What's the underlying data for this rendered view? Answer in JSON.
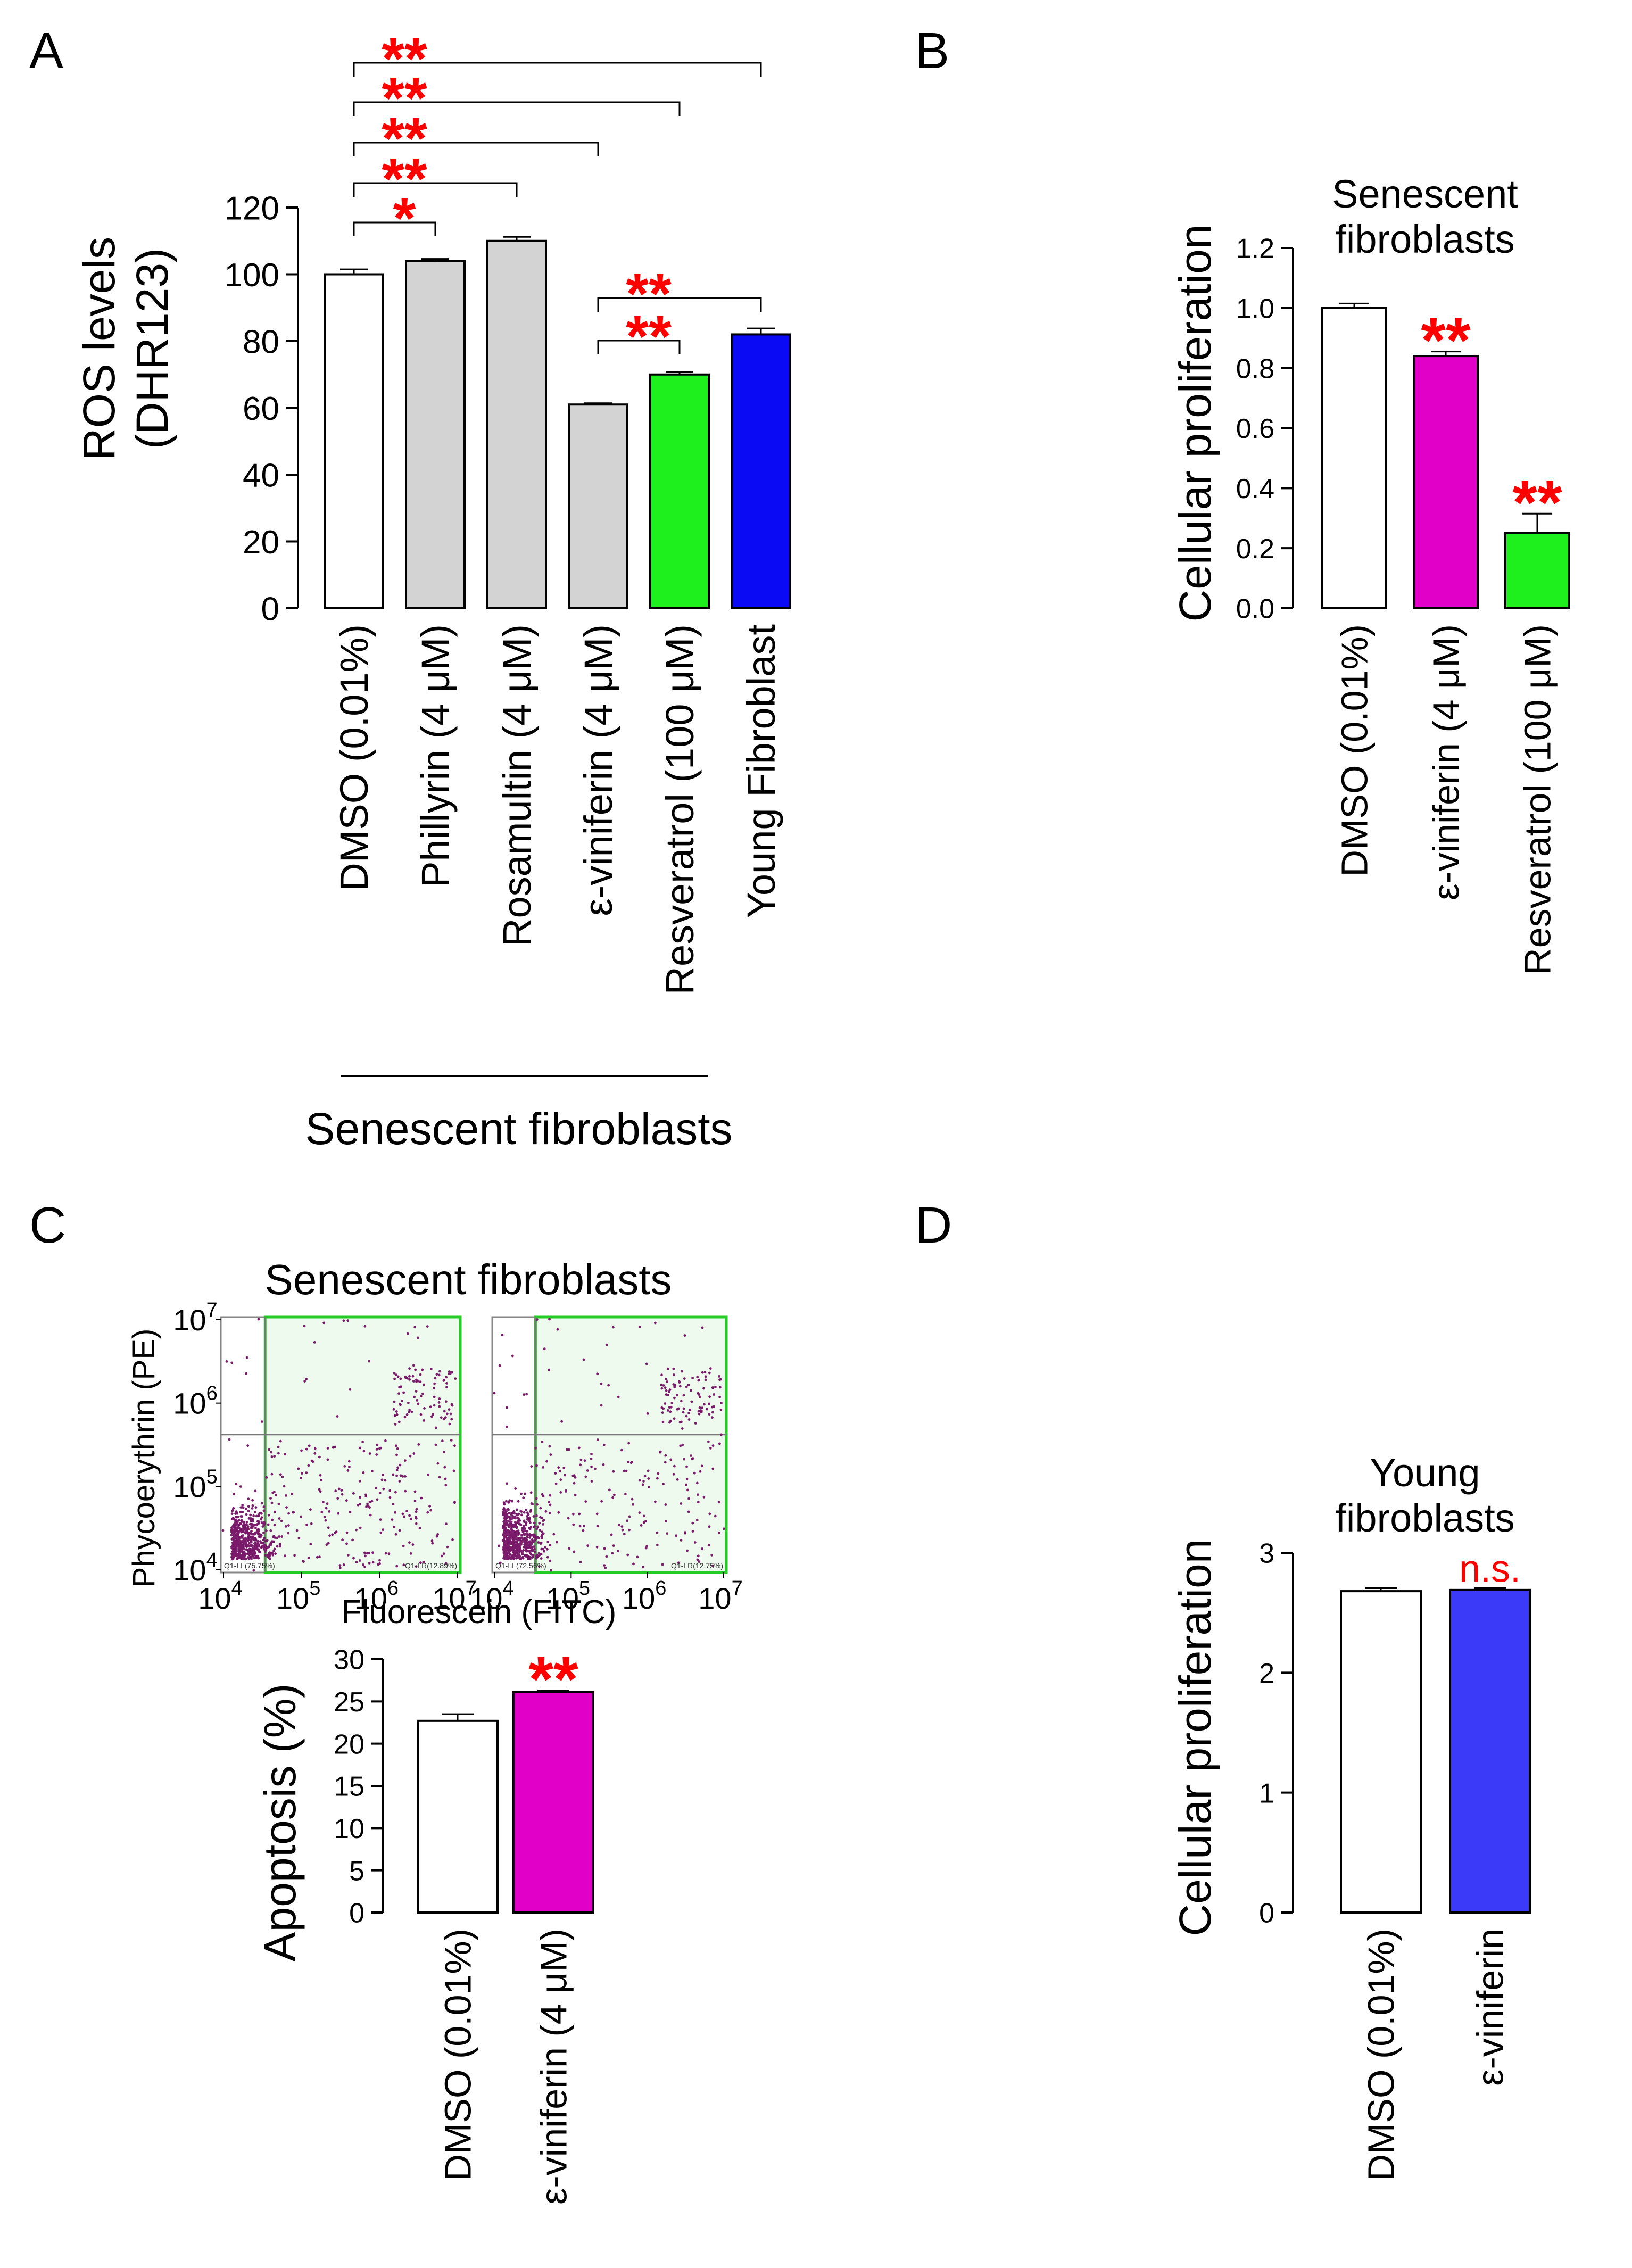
{
  "panel_labels": {
    "a": "A",
    "b": "B",
    "c": "C",
    "d": "D"
  },
  "colors": {
    "white": "#ffffff",
    "gray": "#d3d3d3",
    "green": "#1ef01e",
    "blue": "#0a0af5",
    "magenta": "#e000c8",
    "blue_d": "#3a3af8",
    "star": "#ff0000",
    "flow_dot": "#7a1a6a",
    "gate": "#22cc22"
  },
  "chart_data": [
    {
      "id": "A",
      "type": "bar",
      "ylabel_line1": "ROS levels",
      "ylabel_line2": "(DHR123)",
      "ylim": [
        0,
        120
      ],
      "yticks": [
        "0",
        "20",
        "40",
        "60",
        "80",
        "100",
        "120"
      ],
      "categories": [
        "DMSO (0.01%)",
        "Phillyrin (4 μM)",
        "Rosamultin (4 μM)",
        "ε-viniferin (4 μM)",
        "Resveratrol (100 μM)",
        "Young Fibroblast"
      ],
      "values": [
        100,
        104,
        110,
        61,
        70,
        82
      ],
      "errors": [
        1.5,
        0.6,
        1.2,
        0.4,
        0.8,
        1.8
      ],
      "bar_colors": [
        "white",
        "gray",
        "gray",
        "gray",
        "green",
        "blue"
      ],
      "group_label": "Senescent fibroblasts",
      "comparisons": [
        {
          "from": 0,
          "to": 5,
          "label": "**"
        },
        {
          "from": 0,
          "to": 4,
          "label": "**"
        },
        {
          "from": 0,
          "to": 3,
          "label": "**"
        },
        {
          "from": 0,
          "to": 2,
          "label": "**"
        },
        {
          "from": 0,
          "to": 1,
          "label": "*"
        },
        {
          "from": 3,
          "to": 5,
          "label": "**"
        },
        {
          "from": 3,
          "to": 4,
          "label": "**"
        }
      ]
    },
    {
      "id": "B",
      "type": "bar",
      "title_line1": "Senescent",
      "title_line2": "fibroblasts",
      "ylabel": "Cellular proliferation",
      "ylim": [
        0,
        1.2
      ],
      "yticks": [
        "0.0",
        "0.2",
        "0.4",
        "0.6",
        "0.8",
        "1.0",
        "1.2"
      ],
      "categories": [
        "DMSO (0.01%)",
        "ε-viniferin (4 μM)",
        "Resveratrol (100 μM)"
      ],
      "values": [
        1.0,
        0.84,
        0.25
      ],
      "errors": [
        0.015,
        0.015,
        0.065
      ],
      "bar_colors": [
        "white",
        "magenta",
        "green"
      ],
      "annotations": [
        "",
        "**",
        "**"
      ]
    },
    {
      "id": "C-flow",
      "type": "scatter",
      "title": "Senescent fibroblasts",
      "xlabel": "Fluorescein  (FITC)",
      "ylabel": "Phycoerythrin (PE)",
      "xtick_base": "10",
      "xtick_exps": [
        "4",
        "5",
        "6",
        "7"
      ],
      "ytick_base": "10",
      "ytick_exps": [
        "4",
        "5",
        "6",
        "7"
      ],
      "plots": [
        {
          "ll_label": "Q1-LL(75.75%)",
          "lr_label": "Q1-LR(12.89%)"
        },
        {
          "ll_label": "Q1-LL(72.56%)",
          "lr_label": "Q1-LR(12.75%)"
        }
      ]
    },
    {
      "id": "C",
      "type": "bar",
      "ylabel": "Apoptosis (%)",
      "ylim": [
        0,
        30
      ],
      "yticks": [
        "0",
        "5",
        "10",
        "15",
        "20",
        "25",
        "30"
      ],
      "categories": [
        "DMSO (0.01%)",
        "ε-viniferin (4 μM)"
      ],
      "values": [
        22.7,
        26.1
      ],
      "errors": [
        0.8,
        0.2
      ],
      "bar_colors": [
        "white",
        "magenta"
      ],
      "annotations": [
        "",
        "**"
      ]
    },
    {
      "id": "D",
      "type": "bar",
      "title_line1": "Young",
      "title_line2": "fibroblasts",
      "ylabel": "Cellular proliferation",
      "ylim": [
        0,
        3
      ],
      "yticks": [
        "0",
        "1",
        "2",
        "3"
      ],
      "categories": [
        "DMSO (0.01%)",
        "ε-viniferin"
      ],
      "values": [
        2.68,
        2.69
      ],
      "errors": [
        0.025,
        0.015
      ],
      "bar_colors": [
        "white",
        "blue_d"
      ],
      "annotations": [
        "",
        "n.s."
      ]
    }
  ]
}
